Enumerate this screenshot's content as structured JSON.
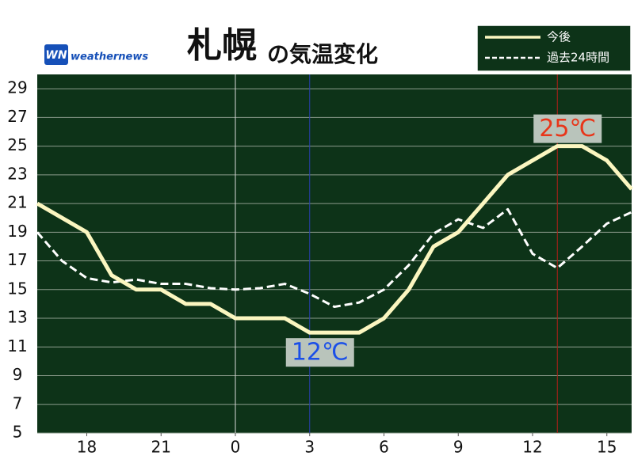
{
  "logo": {
    "mark": "WN",
    "text": "weathernews"
  },
  "chart_data": {
    "type": "line",
    "title": "札幌",
    "subtitle": "の気温変化",
    "x": [
      16,
      17,
      18,
      19,
      20,
      21,
      22,
      23,
      24,
      25,
      26,
      27,
      28,
      29,
      30,
      31,
      32,
      33,
      34,
      35,
      36,
      37,
      38,
      39,
      40
    ],
    "series": [
      {
        "name": "今後",
        "color": "#fbf6c0",
        "dash": false,
        "values": [
          21,
          20,
          19,
          16,
          15,
          15,
          14,
          14,
          13,
          13,
          13,
          12,
          12,
          12,
          13,
          15,
          18,
          19,
          21,
          23,
          24,
          25,
          25,
          24,
          22
        ]
      },
      {
        "name": "過去24時間",
        "color": "#ffffff",
        "dash": true,
        "values": [
          19,
          17,
          15.8,
          15.5,
          15.7,
          15.4,
          15.4,
          15.1,
          15,
          15.1,
          15.4,
          14.7,
          13.8,
          14.1,
          15,
          16.7,
          18.9,
          19.9,
          19.3,
          20.6,
          17.5,
          16.5,
          18,
          19.6,
          20.4
        ]
      }
    ],
    "xlim": [
      16,
      40
    ],
    "ylim": [
      5,
      30
    ],
    "xticks": [
      {
        "value": 18,
        "label": "18"
      },
      {
        "value": 21,
        "label": "21"
      },
      {
        "value": 24,
        "label": "0"
      },
      {
        "value": 27,
        "label": "3"
      },
      {
        "value": 30,
        "label": "6"
      },
      {
        "value": 33,
        "label": "9"
      },
      {
        "value": 36,
        "label": "12"
      },
      {
        "value": 39,
        "label": "15"
      }
    ],
    "yticks": [
      5,
      7,
      9,
      11,
      13,
      15,
      17,
      19,
      21,
      23,
      25,
      27,
      29
    ],
    "grid": true,
    "vlines": [
      {
        "x": 24,
        "color": "#d8d8d8"
      },
      {
        "x": 27,
        "color": "#2840b0"
      },
      {
        "x": 37,
        "color": "#b02018"
      }
    ],
    "annotations": [
      {
        "text": "12℃",
        "x": 27,
        "y": 12,
        "color": "#1a4fe8",
        "position": "below"
      },
      {
        "text": "25℃",
        "x": 37,
        "y": 25,
        "color": "#e8361a",
        "position": "above"
      }
    ]
  }
}
